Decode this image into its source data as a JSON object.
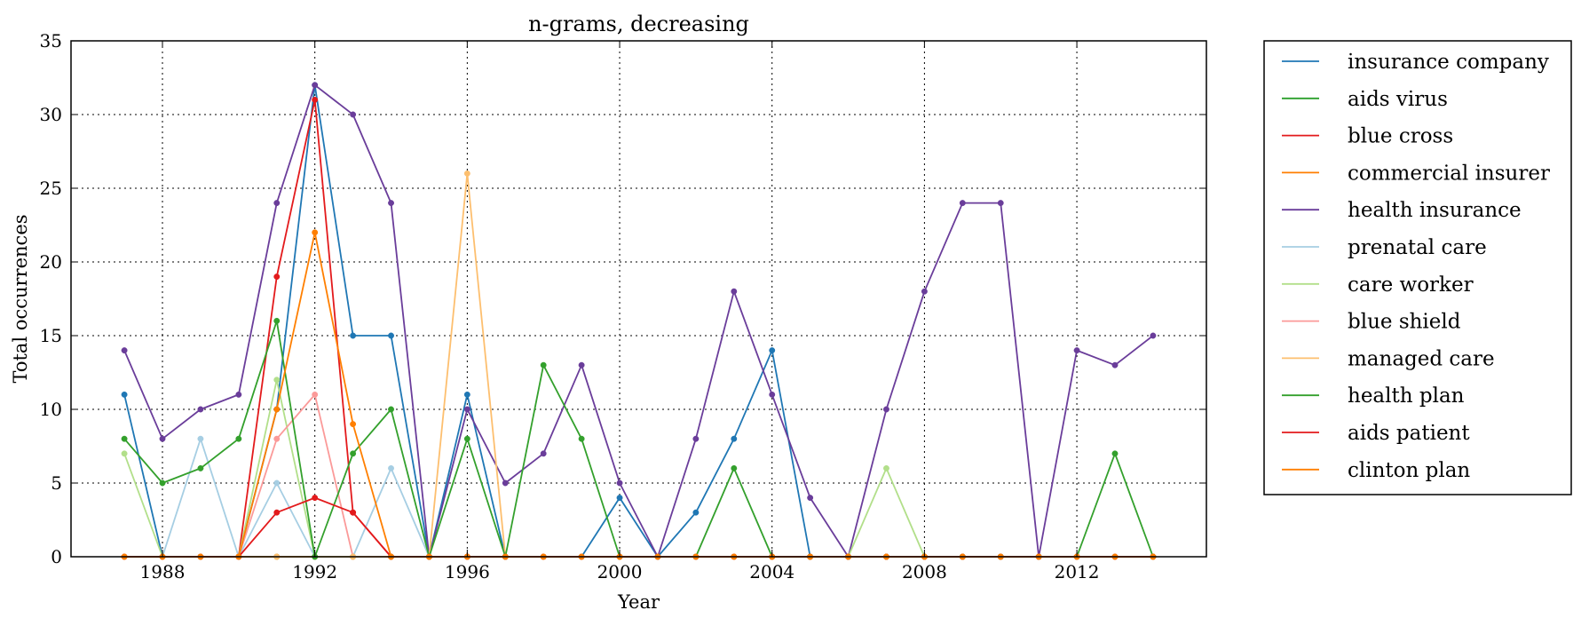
{
  "chart_data": {
    "type": "line",
    "title": "n-grams, decreasing",
    "xlabel": "Year",
    "ylabel": "Total occurrences",
    "xlim": [
      1985.6,
      2015.4
    ],
    "ylim": [
      0,
      35
    ],
    "x_ticks": [
      1988,
      1992,
      1996,
      2000,
      2004,
      2008,
      2012
    ],
    "y_ticks": [
      0,
      5,
      10,
      15,
      20,
      25,
      30,
      35
    ],
    "grid": true,
    "legend_position": "outside-right",
    "x": [
      1987,
      1988,
      1989,
      1990,
      1991,
      1992,
      1993,
      1994,
      1995,
      1996,
      1997,
      1998,
      1999,
      2000,
      2001,
      2002,
      2003,
      2004,
      2005,
      2006,
      2007,
      2008,
      2009,
      2010,
      2011,
      2012,
      2013,
      2014
    ],
    "series": [
      {
        "name": "insurance company",
        "color": "#1f77b4",
        "values": [
          11,
          0,
          0,
          0,
          10,
          32,
          15,
          15,
          0,
          11,
          0,
          0,
          0,
          4,
          0,
          3,
          8,
          14,
          0,
          0,
          0,
          0,
          0,
          0,
          0,
          0,
          0,
          0
        ]
      },
      {
        "name": "aids virus",
        "color": "#2ca02c",
        "values": [
          0,
          0,
          0,
          0,
          0,
          0,
          0,
          0,
          0,
          0,
          0,
          0,
          0,
          0,
          0,
          0,
          0,
          0,
          0,
          0,
          0,
          0,
          0,
          0,
          0,
          0,
          0,
          0
        ]
      },
      {
        "name": "blue cross",
        "color": "#e31a1c",
        "values": [
          0,
          0,
          0,
          0,
          19,
          31,
          3,
          0,
          0,
          0,
          0,
          0,
          0,
          0,
          0,
          0,
          0,
          0,
          0,
          0,
          0,
          0,
          0,
          0,
          0,
          0,
          0,
          0
        ]
      },
      {
        "name": "commercial insurer",
        "color": "#ff7f00",
        "values": [
          0,
          0,
          0,
          0,
          0,
          0,
          0,
          0,
          0,
          0,
          0,
          0,
          0,
          0,
          0,
          0,
          0,
          0,
          0,
          0,
          0,
          0,
          0,
          0,
          0,
          0,
          0,
          0
        ]
      },
      {
        "name": "health insurance",
        "color": "#6a3d9a",
        "values": [
          14,
          8,
          10,
          11,
          24,
          32,
          30,
          24,
          0,
          10,
          5,
          7,
          13,
          5,
          0,
          8,
          18,
          11,
          4,
          0,
          10,
          18,
          24,
          24,
          0,
          14,
          13,
          15
        ]
      },
      {
        "name": "prenatal care",
        "color": "#a6cee3",
        "values": [
          0,
          0,
          8,
          0,
          5,
          0,
          0,
          6,
          0,
          0,
          0,
          0,
          0,
          0,
          0,
          0,
          0,
          0,
          0,
          0,
          0,
          0,
          0,
          0,
          0,
          0,
          0,
          0
        ]
      },
      {
        "name": "care worker",
        "color": "#b2df8a",
        "values": [
          7,
          0,
          0,
          0,
          12,
          0,
          0,
          0,
          0,
          0,
          0,
          0,
          0,
          0,
          0,
          0,
          0,
          0,
          0,
          0,
          6,
          0,
          0,
          0,
          0,
          0,
          0,
          0
        ]
      },
      {
        "name": "blue shield",
        "color": "#fb9a99",
        "values": [
          0,
          0,
          0,
          0,
          8,
          11,
          0,
          0,
          0,
          0,
          0,
          0,
          0,
          0,
          0,
          0,
          0,
          0,
          0,
          0,
          0,
          0,
          0,
          0,
          0,
          0,
          0,
          0
        ]
      },
      {
        "name": "managed care",
        "color": "#fdbf6f",
        "values": [
          0,
          0,
          0,
          0,
          0,
          0,
          0,
          0,
          0,
          26,
          0,
          0,
          0,
          0,
          0,
          0,
          0,
          0,
          0,
          0,
          0,
          0,
          0,
          0,
          0,
          0,
          0,
          0
        ]
      },
      {
        "name": "health plan",
        "color": "#33a02c",
        "values": [
          8,
          5,
          6,
          8,
          16,
          0,
          7,
          10,
          0,
          8,
          0,
          13,
          8,
          0,
          0,
          0,
          6,
          0,
          0,
          0,
          0,
          0,
          0,
          0,
          0,
          0,
          7,
          0
        ]
      },
      {
        "name": "aids patient",
        "color": "#e31a1c",
        "values": [
          0,
          0,
          0,
          0,
          3,
          4,
          3,
          0,
          0,
          0,
          0,
          0,
          0,
          0,
          0,
          0,
          0,
          0,
          0,
          0,
          0,
          0,
          0,
          0,
          0,
          0,
          0,
          0
        ]
      },
      {
        "name": "clinton plan",
        "color": "#ff7f00",
        "values": [
          0,
          0,
          0,
          0,
          10,
          22,
          9,
          0,
          0,
          0,
          0,
          0,
          0,
          0,
          0,
          0,
          0,
          0,
          0,
          0,
          0,
          0,
          0,
          0,
          0,
          0,
          0,
          0
        ]
      }
    ]
  }
}
